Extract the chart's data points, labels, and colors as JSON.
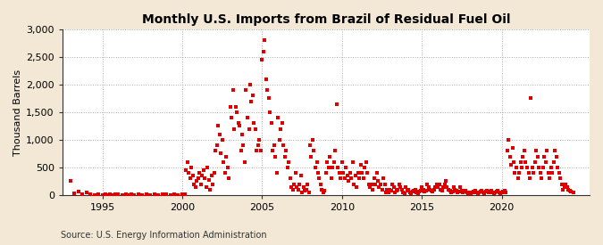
{
  "title": "Monthly U.S. Imports from Brazil of Residual Fuel Oil",
  "ylabel": "Thousand Barrels",
  "source_text": "Source: U.S. Energy Information Administration",
  "fig_bg_color": "#f2e8d5",
  "plot_bg_color": "#ffffff",
  "marker_color": "#dd0000",
  "marker_size": 5,
  "ylim": [
    0,
    3000
  ],
  "yticks": [
    0,
    500,
    1000,
    1500,
    2000,
    2500,
    3000
  ],
  "xlim_start": 1992.5,
  "xlim_end": 2025.5,
  "xticks": [
    1995,
    2000,
    2005,
    2010,
    2015,
    2020
  ],
  "grid_color": "#aaaaaa",
  "grid_style": ":",
  "title_fontsize": 10,
  "tick_fontsize": 8,
  "ylabel_fontsize": 8,
  "source_fontsize": 7,
  "data_points": [
    [
      1993.0,
      250
    ],
    [
      1993.25,
      30
    ],
    [
      1993.5,
      60
    ],
    [
      1993.75,
      20
    ],
    [
      1994.0,
      40
    ],
    [
      1994.25,
      10
    ],
    [
      1994.5,
      5
    ],
    [
      1994.75,
      8
    ],
    [
      1995.0,
      5
    ],
    [
      1995.17,
      8
    ],
    [
      1995.33,
      5
    ],
    [
      1995.5,
      10
    ],
    [
      1995.67,
      5
    ],
    [
      1995.83,
      8
    ],
    [
      1996.0,
      20
    ],
    [
      1996.25,
      5
    ],
    [
      1996.5,
      10
    ],
    [
      1996.67,
      5
    ],
    [
      1996.83,
      8
    ],
    [
      1997.0,
      5
    ],
    [
      1997.25,
      8
    ],
    [
      1997.5,
      5
    ],
    [
      1997.75,
      10
    ],
    [
      1998.0,
      5
    ],
    [
      1998.25,
      8
    ],
    [
      1998.5,
      5
    ],
    [
      1998.75,
      8
    ],
    [
      1999.0,
      10
    ],
    [
      1999.25,
      5
    ],
    [
      1999.5,
      8
    ],
    [
      1999.75,
      5
    ],
    [
      2000.0,
      10
    ],
    [
      2000.08,
      5
    ],
    [
      2000.17,
      8
    ],
    [
      2000.25,
      450
    ],
    [
      2000.33,
      600
    ],
    [
      2000.42,
      400
    ],
    [
      2000.5,
      300
    ],
    [
      2000.58,
      500
    ],
    [
      2000.67,
      350
    ],
    [
      2000.75,
      200
    ],
    [
      2000.83,
      150
    ],
    [
      2000.92,
      250
    ],
    [
      2001.0,
      300
    ],
    [
      2001.08,
      400
    ],
    [
      2001.17,
      200
    ],
    [
      2001.25,
      350
    ],
    [
      2001.33,
      450
    ],
    [
      2001.42,
      300
    ],
    [
      2001.5,
      150
    ],
    [
      2001.58,
      500
    ],
    [
      2001.67,
      280
    ],
    [
      2001.75,
      100
    ],
    [
      2001.83,
      350
    ],
    [
      2001.92,
      200
    ],
    [
      2002.0,
      400
    ],
    [
      2002.08,
      800
    ],
    [
      2002.17,
      900
    ],
    [
      2002.25,
      1250
    ],
    [
      2002.33,
      1100
    ],
    [
      2002.42,
      750
    ],
    [
      2002.5,
      1000
    ],
    [
      2002.58,
      600
    ],
    [
      2002.67,
      400
    ],
    [
      2002.75,
      700
    ],
    [
      2002.83,
      500
    ],
    [
      2002.92,
      300
    ],
    [
      2003.0,
      1600
    ],
    [
      2003.08,
      1400
    ],
    [
      2003.17,
      1900
    ],
    [
      2003.25,
      1200
    ],
    [
      2003.33,
      1600
    ],
    [
      2003.42,
      1500
    ],
    [
      2003.5,
      1300
    ],
    [
      2003.58,
      1250
    ],
    [
      2003.67,
      800
    ],
    [
      2003.75,
      1100
    ],
    [
      2003.83,
      900
    ],
    [
      2003.92,
      600
    ],
    [
      2004.0,
      1900
    ],
    [
      2004.08,
      1400
    ],
    [
      2004.17,
      1200
    ],
    [
      2004.25,
      2000
    ],
    [
      2004.33,
      1700
    ],
    [
      2004.42,
      1800
    ],
    [
      2004.5,
      1300
    ],
    [
      2004.58,
      1200
    ],
    [
      2004.67,
      800
    ],
    [
      2004.75,
      900
    ],
    [
      2004.83,
      1000
    ],
    [
      2004.92,
      800
    ],
    [
      2005.0,
      2450
    ],
    [
      2005.08,
      2600
    ],
    [
      2005.17,
      2800
    ],
    [
      2005.25,
      2100
    ],
    [
      2005.33,
      1900
    ],
    [
      2005.42,
      1750
    ],
    [
      2005.5,
      1500
    ],
    [
      2005.58,
      1300
    ],
    [
      2005.67,
      800
    ],
    [
      2005.75,
      900
    ],
    [
      2005.83,
      700
    ],
    [
      2005.92,
      400
    ],
    [
      2006.0,
      1400
    ],
    [
      2006.08,
      1000
    ],
    [
      2006.17,
      1200
    ],
    [
      2006.25,
      1300
    ],
    [
      2006.33,
      900
    ],
    [
      2006.42,
      700
    ],
    [
      2006.5,
      800
    ],
    [
      2006.58,
      500
    ],
    [
      2006.67,
      600
    ],
    [
      2006.75,
      300
    ],
    [
      2006.83,
      150
    ],
    [
      2006.92,
      100
    ],
    [
      2007.0,
      200
    ],
    [
      2007.08,
      400
    ],
    [
      2007.17,
      150
    ],
    [
      2007.25,
      100
    ],
    [
      2007.33,
      200
    ],
    [
      2007.42,
      350
    ],
    [
      2007.5,
      50
    ],
    [
      2007.58,
      150
    ],
    [
      2007.67,
      80
    ],
    [
      2007.75,
      100
    ],
    [
      2007.83,
      200
    ],
    [
      2007.92,
      50
    ],
    [
      2008.0,
      900
    ],
    [
      2008.08,
      700
    ],
    [
      2008.17,
      1000
    ],
    [
      2008.25,
      800
    ],
    [
      2008.33,
      500
    ],
    [
      2008.42,
      600
    ],
    [
      2008.5,
      400
    ],
    [
      2008.58,
      300
    ],
    [
      2008.67,
      200
    ],
    [
      2008.75,
      100
    ],
    [
      2008.83,
      50
    ],
    [
      2008.92,
      80
    ],
    [
      2009.0,
      400
    ],
    [
      2009.08,
      600
    ],
    [
      2009.17,
      500
    ],
    [
      2009.25,
      700
    ],
    [
      2009.33,
      300
    ],
    [
      2009.42,
      500
    ],
    [
      2009.5,
      600
    ],
    [
      2009.58,
      800
    ],
    [
      2009.67,
      1650
    ],
    [
      2009.75,
      500
    ],
    [
      2009.83,
      400
    ],
    [
      2009.92,
      300
    ],
    [
      2010.0,
      600
    ],
    [
      2010.08,
      400
    ],
    [
      2010.17,
      300
    ],
    [
      2010.25,
      500
    ],
    [
      2010.33,
      350
    ],
    [
      2010.42,
      250
    ],
    [
      2010.5,
      400
    ],
    [
      2010.58,
      300
    ],
    [
      2010.67,
      600
    ],
    [
      2010.75,
      200
    ],
    [
      2010.83,
      350
    ],
    [
      2010.92,
      150
    ],
    [
      2011.0,
      400
    ],
    [
      2011.08,
      300
    ],
    [
      2011.17,
      550
    ],
    [
      2011.25,
      400
    ],
    [
      2011.33,
      300
    ],
    [
      2011.42,
      500
    ],
    [
      2011.5,
      600
    ],
    [
      2011.58,
      400
    ],
    [
      2011.67,
      200
    ],
    [
      2011.75,
      150
    ],
    [
      2011.83,
      200
    ],
    [
      2011.92,
      100
    ],
    [
      2012.0,
      300
    ],
    [
      2012.08,
      200
    ],
    [
      2012.17,
      400
    ],
    [
      2012.25,
      250
    ],
    [
      2012.33,
      150
    ],
    [
      2012.42,
      200
    ],
    [
      2012.5,
      100
    ],
    [
      2012.58,
      300
    ],
    [
      2012.67,
      200
    ],
    [
      2012.75,
      50
    ],
    [
      2012.83,
      100
    ],
    [
      2012.92,
      50
    ],
    [
      2013.0,
      100
    ],
    [
      2013.08,
      80
    ],
    [
      2013.17,
      200
    ],
    [
      2013.25,
      150
    ],
    [
      2013.33,
      50
    ],
    [
      2013.42,
      80
    ],
    [
      2013.5,
      100
    ],
    [
      2013.58,
      200
    ],
    [
      2013.67,
      150
    ],
    [
      2013.75,
      100
    ],
    [
      2013.83,
      50
    ],
    [
      2013.92,
      30
    ],
    [
      2014.0,
      150
    ],
    [
      2014.08,
      80
    ],
    [
      2014.17,
      100
    ],
    [
      2014.25,
      50
    ],
    [
      2014.33,
      30
    ],
    [
      2014.42,
      60
    ],
    [
      2014.5,
      80
    ],
    [
      2014.58,
      100
    ],
    [
      2014.67,
      50
    ],
    [
      2014.75,
      30
    ],
    [
      2014.83,
      60
    ],
    [
      2014.92,
      80
    ],
    [
      2015.0,
      150
    ],
    [
      2015.08,
      100
    ],
    [
      2015.17,
      60
    ],
    [
      2015.25,
      80
    ],
    [
      2015.33,
      200
    ],
    [
      2015.42,
      150
    ],
    [
      2015.5,
      100
    ],
    [
      2015.58,
      80
    ],
    [
      2015.67,
      60
    ],
    [
      2015.75,
      100
    ],
    [
      2015.83,
      150
    ],
    [
      2015.92,
      200
    ],
    [
      2016.0,
      150
    ],
    [
      2016.08,
      200
    ],
    [
      2016.17,
      100
    ],
    [
      2016.25,
      80
    ],
    [
      2016.33,
      150
    ],
    [
      2016.42,
      200
    ],
    [
      2016.5,
      250
    ],
    [
      2016.58,
      150
    ],
    [
      2016.67,
      100
    ],
    [
      2016.75,
      80
    ],
    [
      2016.83,
      50
    ],
    [
      2016.92,
      60
    ],
    [
      2017.0,
      150
    ],
    [
      2017.08,
      100
    ],
    [
      2017.17,
      80
    ],
    [
      2017.25,
      50
    ],
    [
      2017.33,
      60
    ],
    [
      2017.42,
      150
    ],
    [
      2017.5,
      80
    ],
    [
      2017.58,
      50
    ],
    [
      2017.67,
      60
    ],
    [
      2017.75,
      80
    ],
    [
      2017.83,
      50
    ],
    [
      2017.92,
      30
    ],
    [
      2018.0,
      50
    ],
    [
      2018.08,
      30
    ],
    [
      2018.17,
      50
    ],
    [
      2018.25,
      60
    ],
    [
      2018.33,
      80
    ],
    [
      2018.42,
      50
    ],
    [
      2018.5,
      30
    ],
    [
      2018.58,
      50
    ],
    [
      2018.67,
      60
    ],
    [
      2018.75,
      80
    ],
    [
      2018.83,
      50
    ],
    [
      2018.92,
      30
    ],
    [
      2019.0,
      60
    ],
    [
      2019.08,
      80
    ],
    [
      2019.17,
      50
    ],
    [
      2019.25,
      60
    ],
    [
      2019.33,
      80
    ],
    [
      2019.42,
      50
    ],
    [
      2019.5,
      30
    ],
    [
      2019.58,
      50
    ],
    [
      2019.67,
      60
    ],
    [
      2019.75,
      80
    ],
    [
      2019.83,
      50
    ],
    [
      2019.92,
      30
    ],
    [
      2020.0,
      50
    ],
    [
      2020.08,
      60
    ],
    [
      2020.17,
      80
    ],
    [
      2020.25,
      50
    ],
    [
      2020.33,
      800
    ],
    [
      2020.42,
      1000
    ],
    [
      2020.5,
      700
    ],
    [
      2020.58,
      550
    ],
    [
      2020.67,
      850
    ],
    [
      2020.75,
      600
    ],
    [
      2020.83,
      400
    ],
    [
      2020.92,
      500
    ],
    [
      2021.0,
      300
    ],
    [
      2021.08,
      400
    ],
    [
      2021.17,
      600
    ],
    [
      2021.25,
      500
    ],
    [
      2021.33,
      700
    ],
    [
      2021.42,
      800
    ],
    [
      2021.5,
      600
    ],
    [
      2021.58,
      500
    ],
    [
      2021.67,
      400
    ],
    [
      2021.75,
      300
    ],
    [
      2021.83,
      1750
    ],
    [
      2021.92,
      500
    ],
    [
      2022.0,
      400
    ],
    [
      2022.08,
      600
    ],
    [
      2022.17,
      800
    ],
    [
      2022.25,
      700
    ],
    [
      2022.33,
      500
    ],
    [
      2022.42,
      400
    ],
    [
      2022.5,
      300
    ],
    [
      2022.58,
      500
    ],
    [
      2022.67,
      700
    ],
    [
      2022.75,
      600
    ],
    [
      2022.83,
      800
    ],
    [
      2022.92,
      400
    ],
    [
      2023.0,
      300
    ],
    [
      2023.08,
      500
    ],
    [
      2023.17,
      400
    ],
    [
      2023.25,
      600
    ],
    [
      2023.33,
      800
    ],
    [
      2023.42,
      700
    ],
    [
      2023.5,
      500
    ],
    [
      2023.58,
      400
    ],
    [
      2023.67,
      300
    ],
    [
      2023.75,
      200
    ],
    [
      2023.83,
      100
    ],
    [
      2023.92,
      150
    ],
    [
      2024.0,
      200
    ],
    [
      2024.08,
      150
    ],
    [
      2024.17,
      100
    ],
    [
      2024.25,
      80
    ],
    [
      2024.33,
      60
    ],
    [
      2024.5,
      50
    ]
  ]
}
